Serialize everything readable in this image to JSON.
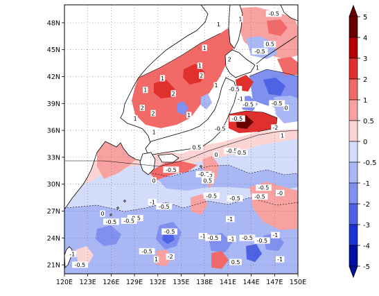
{
  "map": {
    "lat_ticks": [
      "48N",
      "45N",
      "42N",
      "39N",
      "36N",
      "33N",
      "30N",
      "27N",
      "24N",
      "21N"
    ],
    "lon_ticks": [
      "120E",
      "123E",
      "126E",
      "129E",
      "132E",
      "135E",
      "138E",
      "141E",
      "144E",
      "147E",
      "150E"
    ],
    "extent": {
      "lon_min": 120,
      "lon_max": 150,
      "lat_min": 20,
      "lat_max": 50
    },
    "contour_labels": [
      {
        "t": "1",
        "lon": 142.6,
        "lat": 48.3
      },
      {
        "t": "-0.5",
        "lon": 146.9,
        "lat": 48.9
      },
      {
        "t": "1",
        "lon": 139.8,
        "lat": 47.7
      },
      {
        "t": "0.5",
        "lon": 146.4,
        "lat": 45.5
      },
      {
        "t": "-0.5",
        "lon": 145.1,
        "lat": 44.7
      },
      {
        "t": "1",
        "lon": 138.0,
        "lat": 45.1
      },
      {
        "t": "2",
        "lon": 141.2,
        "lat": 43.8
      },
      {
        "t": "1",
        "lon": 137.4,
        "lat": 43.1
      },
      {
        "t": "2",
        "lon": 137.6,
        "lat": 42.0
      },
      {
        "t": "1",
        "lon": 144.8,
        "lat": 42.9
      },
      {
        "t": "1",
        "lon": 132.6,
        "lat": 41.7
      },
      {
        "t": "1",
        "lon": 139.5,
        "lat": 40.9
      },
      {
        "t": "1",
        "lon": 130.4,
        "lat": 40.4
      },
      {
        "t": "2",
        "lon": 134.0,
        "lat": 40.0
      },
      {
        "t": "-0.5",
        "lon": 141.8,
        "lat": 40.5
      },
      {
        "t": "-1",
        "lon": 142.6,
        "lat": 39.4
      },
      {
        "t": "-0.5",
        "lon": 143.6,
        "lat": 38.8
      },
      {
        "t": "-0.5",
        "lon": 147.3,
        "lat": 38.9
      },
      {
        "t": "0",
        "lon": 148.5,
        "lat": 38.4
      },
      {
        "t": "2",
        "lon": 130.0,
        "lat": 38.4
      },
      {
        "t": "2",
        "lon": 131.4,
        "lat": 37.8
      },
      {
        "t": "1",
        "lon": 129.1,
        "lat": 37.2
      },
      {
        "t": "1",
        "lon": 136.0,
        "lat": 37.6
      },
      {
        "t": "-0.5",
        "lon": 142.2,
        "lat": 37.2
      },
      {
        "t": "-0.5",
        "lon": 140.0,
        "lat": 36.1
      },
      {
        "t": "-2",
        "lon": 147.1,
        "lat": 36.2
      },
      {
        "t": "1",
        "lon": 148.0,
        "lat": 35.3
      },
      {
        "t": "1",
        "lon": 131.5,
        "lat": 35.7
      },
      {
        "t": "0.5",
        "lon": 137.0,
        "lat": 34.0
      },
      {
        "t": "0",
        "lon": 139.5,
        "lat": 33.2
      },
      {
        "t": "-0.5",
        "lon": 141.5,
        "lat": 33.6
      },
      {
        "t": "0.5",
        "lon": 142.8,
        "lat": 33.4
      },
      {
        "t": "-0.5",
        "lon": 133.7,
        "lat": 31.5
      },
      {
        "t": "-0.5",
        "lon": 137.9,
        "lat": 31.0
      },
      {
        "t": "-2",
        "lon": 138.7,
        "lat": 30.8
      },
      {
        "t": "0.5",
        "lon": 138.4,
        "lat": 30.3
      },
      {
        "t": "0",
        "lon": 131.5,
        "lat": 30.3
      },
      {
        "t": "-0.5",
        "lon": 145.6,
        "lat": 29.5
      },
      {
        "t": "-0.5",
        "lon": 141.9,
        "lat": 28.3
      },
      {
        "t": "-0.5",
        "lon": 138.9,
        "lat": 28.6
      },
      {
        "t": "-0.5",
        "lon": 145.1,
        "lat": 28.5
      },
      {
        "t": "-1",
        "lon": 131.3,
        "lat": 27.9
      },
      {
        "t": "-0",
        "lon": 147.7,
        "lat": 28.9
      },
      {
        "t": "-0.5",
        "lon": 132.8,
        "lat": 27.4
      },
      {
        "t": "0",
        "lon": 124.9,
        "lat": 26.6
      },
      {
        "t": "-0.5",
        "lon": 126.0,
        "lat": 25.7
      },
      {
        "t": "-0.5",
        "lon": 129.1,
        "lat": 26.1
      },
      {
        "t": "-0.5",
        "lon": 128.3,
        "lat": 25.8
      },
      {
        "t": "-1",
        "lon": 141.3,
        "lat": 26.0
      },
      {
        "t": "-0.5",
        "lon": 133.5,
        "lat": 24.6
      },
      {
        "t": "-1",
        "lon": 137.8,
        "lat": 24.1
      },
      {
        "t": "-0.5",
        "lon": 139.1,
        "lat": 23.9
      },
      {
        "t": "-1",
        "lon": 141.5,
        "lat": 23.8
      },
      {
        "t": "-0.5",
        "lon": 143.5,
        "lat": 23.9
      },
      {
        "t": "-0.5",
        "lon": 145.4,
        "lat": 23.6
      },
      {
        "t": "-1",
        "lon": 147.1,
        "lat": 24.2
      },
      {
        "t": "-0.5",
        "lon": 130.6,
        "lat": 22.4
      },
      {
        "t": "-1",
        "lon": 121.0,
        "lat": 22.1
      },
      {
        "t": "-2",
        "lon": 133.6,
        "lat": 21.8
      },
      {
        "t": "1",
        "lon": 131.8,
        "lat": 21.5
      },
      {
        "t": "-0.5",
        "lon": 122.0,
        "lat": 20.9
      },
      {
        "t": "0.5",
        "lon": 142.0,
        "lat": 21.2
      },
      {
        "t": "-1",
        "lon": 147.7,
        "lat": 21.5
      }
    ]
  },
  "colorbar": {
    "labels": [
      "5",
      "4",
      "3",
      "2",
      "1",
      "0.5",
      "0",
      "-0.5",
      "-1",
      "-2",
      "-3",
      "-4",
      "-5"
    ],
    "colors": {
      "5": "#6a0000",
      "4": "#b30000",
      "3": "#e0302e",
      "2": "#f26a68",
      "1": "#f7a2a0",
      "0.5": "#fbd4d3",
      "0": "#ffffff",
      "-0.5": "#d4dcfb",
      "-1": "#aab7f5",
      "-2": "#7f90ee",
      "-3": "#4d62e5",
      "-4": "#1a33d6",
      "-5": "#0010a0"
    }
  },
  "field_levels": [
    {
      "v": 0.5,
      "c": "#fbd4d3"
    },
    {
      "v": 1,
      "c": "#f7a2a0"
    },
    {
      "v": 2,
      "c": "#f26a68"
    },
    {
      "v": 3,
      "c": "#e0302e"
    },
    {
      "v": -0.5,
      "c": "#d4dcfb"
    },
    {
      "v": -1,
      "c": "#aab7f5"
    },
    {
      "v": -2,
      "c": "#7f90ee"
    },
    {
      "v": -3,
      "c": "#4d62e5"
    }
  ]
}
